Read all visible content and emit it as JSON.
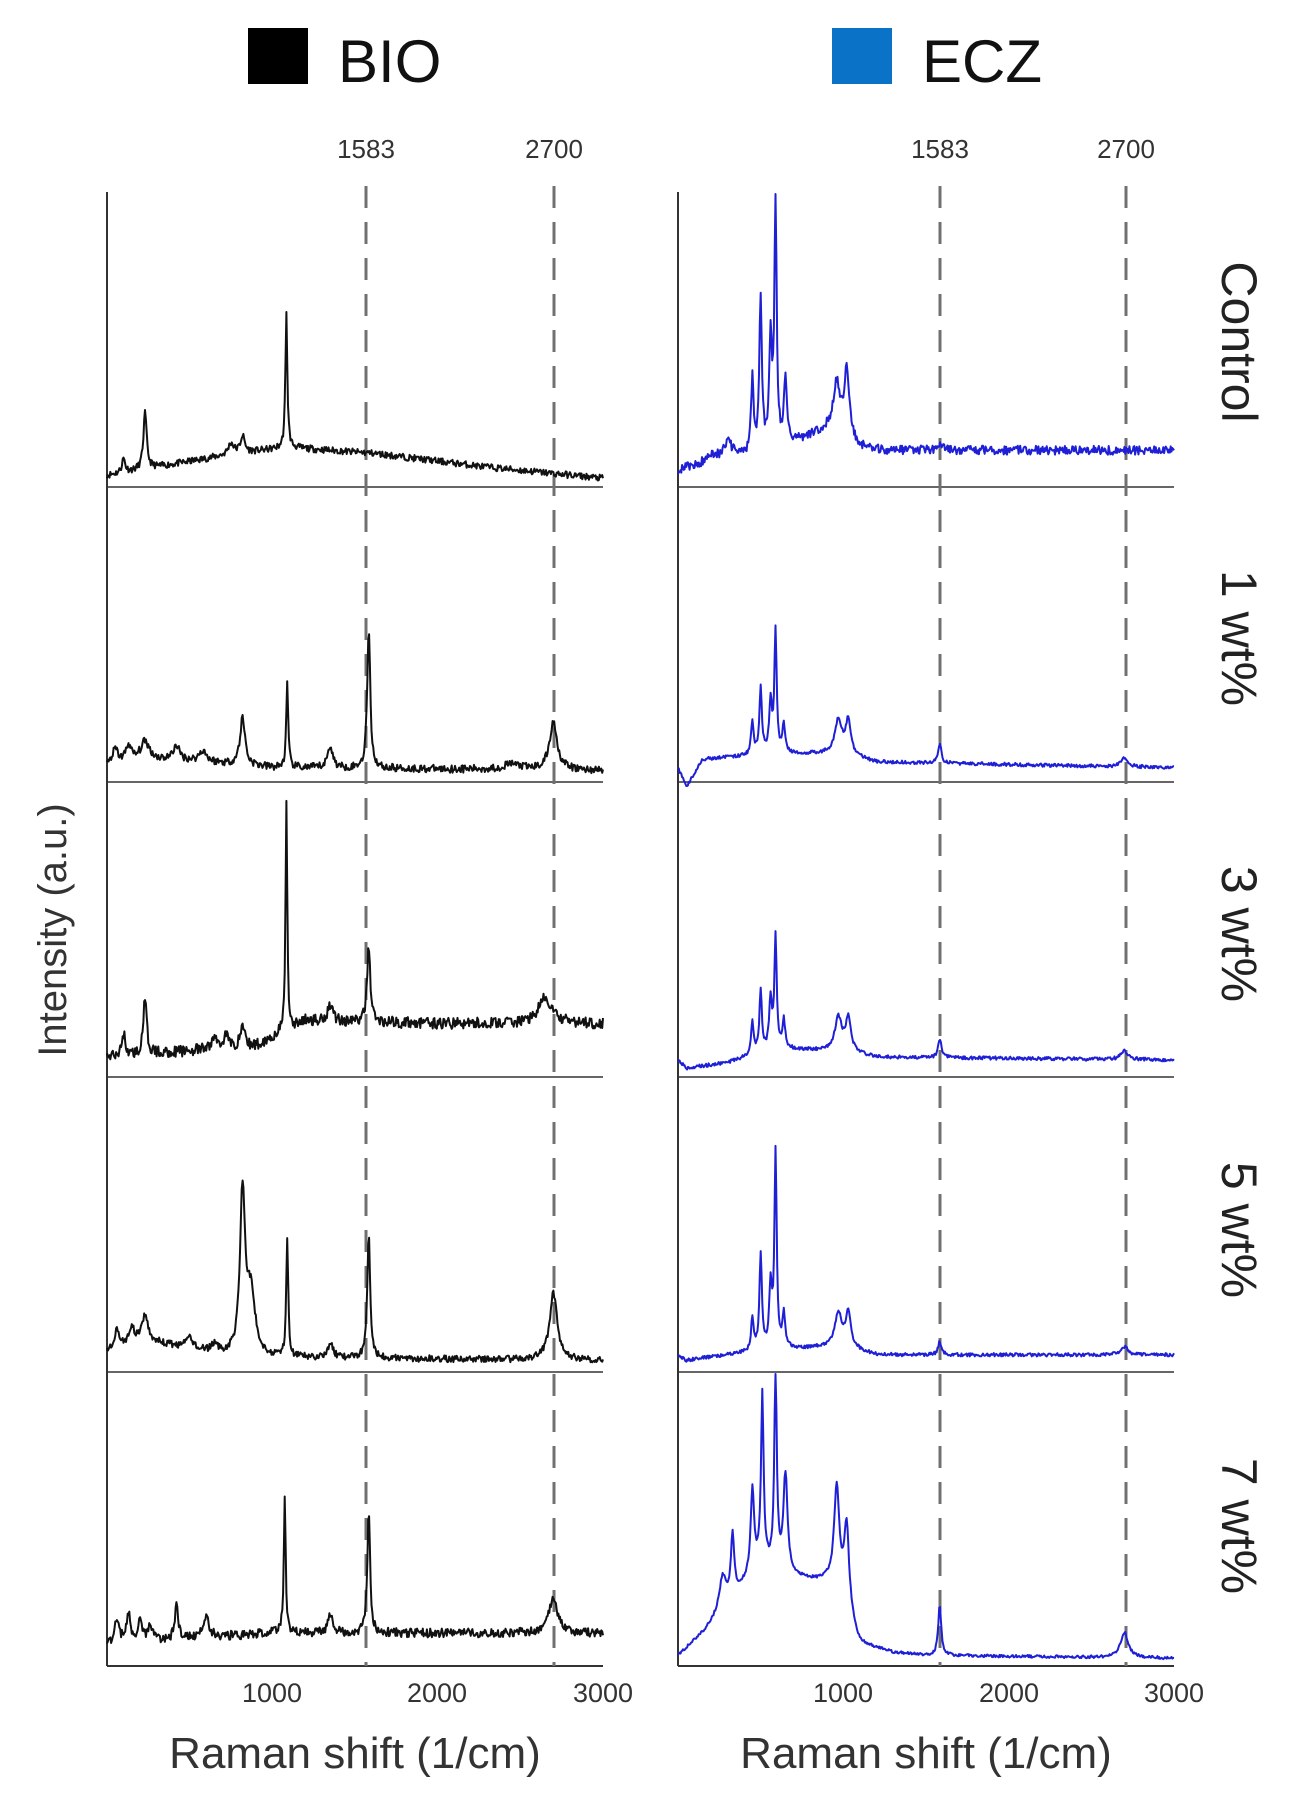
{
  "legend": [
    {
      "label": "BIO",
      "color": "#000000"
    },
    {
      "label": "ECZ",
      "color": "#0a73c8"
    }
  ],
  "axis": {
    "xlabel": "Raman shift (1/cm)",
    "ylabel": "Intensity (a.u.)",
    "xticks": [
      "1000",
      "2000",
      "3000"
    ],
    "xlim": [
      0,
      3000
    ]
  },
  "reference_lines": [
    {
      "label": "1583",
      "x": 1583
    },
    {
      "label": "2700",
      "x": 2700
    }
  ],
  "row_labels": [
    "Control",
    "1 wt%",
    "3 wt%",
    "5 wt%",
    "7 wt%"
  ],
  "colors": {
    "bio_line": "#111111",
    "ecz_line": "#1f1fd6",
    "dash": "#707070"
  },
  "chart_data": [
    {
      "type": "line",
      "title": "BIO",
      "xlabel": "Raman shift (1/cm)",
      "ylabel": "Intensity (a.u.)",
      "xlim": [
        0,
        3000
      ],
      "reference_lines": [
        1583,
        2700
      ],
      "series": [
        {
          "name": "Control",
          "baseline": [
            [
              0,
              0.02
            ],
            [
              800,
              0.1
            ],
            [
              1100,
              0.12
            ],
            [
              1600,
              0.1
            ],
            [
              2300,
              0.05
            ],
            [
              3000,
              0.01
            ]
          ],
          "peaks": [
            [
              100,
              0.05,
              12
            ],
            [
              230,
              0.2,
              12
            ],
            [
              750,
              0.04,
              20
            ],
            [
              820,
              0.06,
              15
            ],
            [
              1085,
              0.48,
              7
            ]
          ],
          "noise": 0.012
        },
        {
          "name": "1 wt%",
          "baseline": [
            [
              0,
              0.04
            ],
            [
              400,
              0.06
            ],
            [
              1000,
              0.03
            ],
            [
              3000,
              0.02
            ]
          ],
          "peaks": [
            [
              50,
              0.05,
              20
            ],
            [
              130,
              0.06,
              20
            ],
            [
              230,
              0.07,
              35
            ],
            [
              420,
              0.05,
              20
            ],
            [
              580,
              0.04,
              25
            ],
            [
              820,
              0.17,
              18
            ],
            [
              1090,
              0.3,
              7
            ],
            [
              1350,
              0.08,
              18
            ],
            [
              1583,
              0.5,
              11
            ],
            [
              2450,
              0.02,
              60
            ],
            [
              2700,
              0.17,
              28
            ]
          ],
          "noise": 0.014
        },
        {
          "name": "3 wt%",
          "baseline": [
            [
              0,
              0.05
            ],
            [
              900,
              0.09
            ],
            [
              1200,
              0.18
            ],
            [
              2000,
              0.17
            ],
            [
              2500,
              0.17
            ],
            [
              3000,
              0.17
            ]
          ],
          "peaks": [
            [
              100,
              0.08,
              12
            ],
            [
              230,
              0.2,
              12
            ],
            [
              650,
              0.04,
              20
            ],
            [
              720,
              0.05,
              15
            ],
            [
              820,
              0.08,
              15
            ],
            [
              1085,
              0.84,
              6
            ],
            [
              1350,
              0.06,
              20
            ],
            [
              1583,
              0.28,
              11
            ],
            [
              2650,
              0.09,
              50
            ]
          ],
          "noise": 0.02
        },
        {
          "name": "5 wt%",
          "baseline": [
            [
              0,
              0.05
            ],
            [
              300,
              0.08
            ],
            [
              700,
              0.04
            ],
            [
              1000,
              0.03
            ],
            [
              3000,
              0.02
            ]
          ],
          "peaks": [
            [
              60,
              0.07,
              20
            ],
            [
              150,
              0.06,
              25
            ],
            [
              230,
              0.1,
              25
            ],
            [
              500,
              0.04,
              25
            ],
            [
              650,
              0.03,
              20
            ],
            [
              820,
              0.58,
              18
            ],
            [
              870,
              0.22,
              30
            ],
            [
              1090,
              0.43,
              7
            ],
            [
              1350,
              0.05,
              20
            ],
            [
              1583,
              0.44,
              11
            ],
            [
              2700,
              0.24,
              28
            ]
          ],
          "noise": 0.012
        },
        {
          "name": "7 wt%",
          "baseline": [
            [
              0,
              0.06
            ],
            [
              500,
              0.08
            ],
            [
              1000,
              0.1
            ],
            [
              1500,
              0.1
            ],
            [
              2000,
              0.1
            ],
            [
              3000,
              0.1
            ]
          ],
          "peaks": [
            [
              60,
              0.09,
              15
            ],
            [
              130,
              0.1,
              15
            ],
            [
              200,
              0.08,
              15
            ],
            [
              260,
              0.06,
              15
            ],
            [
              420,
              0.13,
              12
            ],
            [
              600,
              0.08,
              20
            ],
            [
              1075,
              0.48,
              7
            ],
            [
              1350,
              0.06,
              18
            ],
            [
              1583,
              0.45,
              10
            ],
            [
              2700,
              0.13,
              30
            ]
          ],
          "noise": 0.016
        }
      ]
    },
    {
      "type": "line",
      "title": "ECZ",
      "xlabel": "Raman shift (1/cm)",
      "ylabel": "Intensity (a.u.)",
      "xlim": [
        0,
        3000
      ],
      "reference_lines": [
        1583,
        2700
      ],
      "series": [
        {
          "name": "Control",
          "baseline": [
            [
              0,
              0.04
            ],
            [
              300,
              0.08
            ],
            [
              500,
              0.1
            ],
            [
              700,
              0.14
            ],
            [
              900,
              0.18
            ],
            [
              1100,
              0.12
            ],
            [
              1200,
              0.11
            ],
            [
              3000,
              0.11
            ]
          ],
          "peaks": [
            [
              200,
              0.03,
              30
            ],
            [
              300,
              0.06,
              30
            ],
            [
              450,
              0.26,
              9
            ],
            [
              500,
              0.55,
              9
            ],
            [
              560,
              0.38,
              10
            ],
            [
              590,
              0.9,
              8
            ],
            [
              650,
              0.24,
              10
            ],
            [
              960,
              0.18,
              25
            ],
            [
              1020,
              0.25,
              18
            ],
            [
              1583,
              0.03,
              15
            ]
          ],
          "noise": 0.016
        },
        {
          "name": "1 wt%",
          "baseline": [
            [
              0,
              0.03
            ],
            [
              50,
              -0.04
            ],
            [
              150,
              0.06
            ],
            [
              600,
              0.08
            ],
            [
              1000,
              0.08
            ],
            [
              1200,
              0.05
            ],
            [
              3000,
              0.03
            ]
          ],
          "peaks": [
            [
              450,
              0.12,
              9
            ],
            [
              500,
              0.24,
              9
            ],
            [
              560,
              0.18,
              10
            ],
            [
              590,
              0.44,
              8
            ],
            [
              640,
              0.1,
              10
            ],
            [
              970,
              0.12,
              25
            ],
            [
              1030,
              0.12,
              18
            ],
            [
              1583,
              0.07,
              12
            ],
            [
              2700,
              0.03,
              25
            ]
          ],
          "noise": 0.006
        },
        {
          "name": "3 wt%",
          "baseline": [
            [
              0,
              0.04
            ],
            [
              50,
              0.01
            ],
            [
              300,
              0.03
            ],
            [
              600,
              0.08
            ],
            [
              1000,
              0.07
            ],
            [
              1200,
              0.05
            ],
            [
              3000,
              0.04
            ]
          ],
          "peaks": [
            [
              450,
              0.12,
              9
            ],
            [
              500,
              0.22,
              9
            ],
            [
              560,
              0.18,
              10
            ],
            [
              590,
              0.4,
              8
            ],
            [
              640,
              0.1,
              10
            ],
            [
              970,
              0.12,
              25
            ],
            [
              1030,
              0.12,
              18
            ],
            [
              1583,
              0.07,
              11
            ],
            [
              2700,
              0.03,
              25
            ]
          ],
          "noise": 0.006
        },
        {
          "name": "5 wt%",
          "baseline": [
            [
              0,
              0.04
            ],
            [
              50,
              0.02
            ],
            [
              300,
              0.04
            ],
            [
              600,
              0.06
            ],
            [
              1000,
              0.07
            ],
            [
              1200,
              0.04
            ],
            [
              3000,
              0.04
            ]
          ],
          "peaks": [
            [
              450,
              0.12,
              9
            ],
            [
              500,
              0.34,
              9
            ],
            [
              560,
              0.22,
              10
            ],
            [
              590,
              0.7,
              8
            ],
            [
              640,
              0.12,
              10
            ],
            [
              970,
              0.12,
              25
            ],
            [
              1030,
              0.12,
              18
            ],
            [
              1583,
              0.05,
              11
            ],
            [
              2700,
              0.03,
              25
            ]
          ],
          "noise": 0.006
        },
        {
          "name": "7 wt%",
          "baseline": [
            [
              0,
              0.02
            ],
            [
              150,
              0.1
            ],
            [
              300,
              0.2
            ],
            [
              500,
              0.35
            ],
            [
              700,
              0.3
            ],
            [
              900,
              0.28
            ],
            [
              1000,
              0.2
            ],
            [
              1100,
              0.06
            ],
            [
              1300,
              0.03
            ],
            [
              1500,
              0.02
            ],
            [
              3000,
              0.01
            ]
          ],
          "peaks": [
            [
              270,
              0.12,
              25
            ],
            [
              330,
              0.22,
              12
            ],
            [
              450,
              0.3,
              12
            ],
            [
              510,
              0.6,
              9
            ],
            [
              590,
              0.7,
              9
            ],
            [
              650,
              0.35,
              15
            ],
            [
              960,
              0.38,
              20
            ],
            [
              1020,
              0.3,
              18
            ],
            [
              1583,
              0.18,
              11
            ],
            [
              2700,
              0.09,
              28
            ]
          ],
          "noise": 0.005
        }
      ]
    }
  ]
}
